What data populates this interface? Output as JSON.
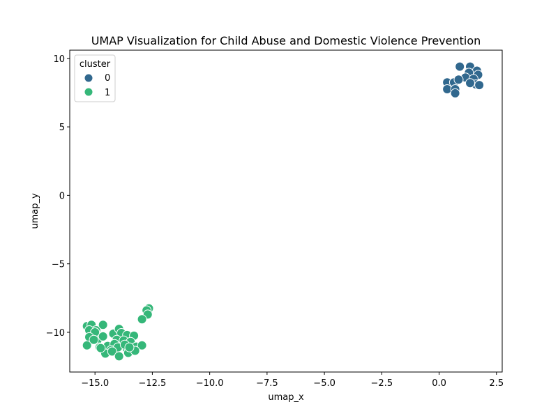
{
  "chart_data": {
    "type": "scatter",
    "title": "UMAP Visualization for Child Abuse and Domestic Violence Prevention",
    "xlabel": "umap_x",
    "ylabel": "umap_y",
    "xlim": [
      -16.1,
      2.75
    ],
    "ylim": [
      -12.9,
      10.6
    ],
    "xticks": [
      -15.0,
      -12.5,
      -10.0,
      -7.5,
      -5.0,
      -2.5,
      0.0,
      2.5
    ],
    "xtick_labels": [
      "−15.0",
      "−12.5",
      "−10.0",
      "−7.5",
      "−5.0",
      "−2.5",
      "0.0",
      "2.5"
    ],
    "yticks": [
      -10,
      -5,
      0,
      5,
      10
    ],
    "ytick_labels": [
      "−10",
      "−5",
      "0",
      "5",
      "10"
    ],
    "grid": false,
    "legend": {
      "title": "cluster",
      "placement": "top-left",
      "entries": [
        {
          "label": "0",
          "color": "#31688e"
        },
        {
          "label": "1",
          "color": "#35b779"
        }
      ]
    },
    "series": [
      {
        "name": "0",
        "color": "#31688e",
        "points": [
          [
            0.9,
            9.4
          ],
          [
            1.35,
            9.4
          ],
          [
            1.65,
            9.1
          ],
          [
            1.3,
            8.95
          ],
          [
            1.7,
            8.8
          ],
          [
            1.15,
            8.6
          ],
          [
            1.5,
            8.5
          ],
          [
            0.35,
            8.25
          ],
          [
            0.65,
            8.25
          ],
          [
            0.85,
            8.45
          ],
          [
            1.6,
            8.1
          ],
          [
            1.75,
            8.05
          ],
          [
            1.35,
            8.2
          ],
          [
            0.35,
            7.75
          ],
          [
            0.7,
            7.75
          ],
          [
            0.7,
            7.45
          ]
        ]
      },
      {
        "name": "1",
        "color": "#35b779",
        "points": [
          [
            -12.65,
            -8.25
          ],
          [
            -12.75,
            -8.4
          ],
          [
            -12.7,
            -8.7
          ],
          [
            -12.95,
            -9.05
          ],
          [
            -15.35,
            -9.55
          ],
          [
            -15.15,
            -9.45
          ],
          [
            -14.95,
            -9.85
          ],
          [
            -14.65,
            -9.45
          ],
          [
            -15.25,
            -9.85
          ],
          [
            -15.0,
            -10.0
          ],
          [
            -14.9,
            -10.6
          ],
          [
            -15.25,
            -10.35
          ],
          [
            -14.65,
            -10.3
          ],
          [
            -14.2,
            -10.1
          ],
          [
            -13.95,
            -9.75
          ],
          [
            -13.85,
            -10.05
          ],
          [
            -13.6,
            -10.2
          ],
          [
            -13.3,
            -10.25
          ],
          [
            -14.05,
            -10.55
          ],
          [
            -13.75,
            -10.6
          ],
          [
            -13.45,
            -10.7
          ],
          [
            -14.45,
            -11.0
          ],
          [
            -14.15,
            -10.85
          ],
          [
            -14.3,
            -11.3
          ],
          [
            -14.0,
            -11.1
          ],
          [
            -13.6,
            -11.25
          ],
          [
            -13.2,
            -11.05
          ],
          [
            -12.95,
            -10.95
          ],
          [
            -15.35,
            -10.95
          ],
          [
            -14.8,
            -11.1
          ],
          [
            -14.55,
            -11.55
          ],
          [
            -14.25,
            -11.4
          ],
          [
            -13.95,
            -11.75
          ],
          [
            -13.55,
            -11.5
          ],
          [
            -13.25,
            -11.35
          ],
          [
            -13.7,
            -10.9
          ],
          [
            -14.75,
            -11.15
          ],
          [
            -15.05,
            -10.55
          ],
          [
            -13.5,
            -11.1
          ]
        ]
      }
    ]
  }
}
